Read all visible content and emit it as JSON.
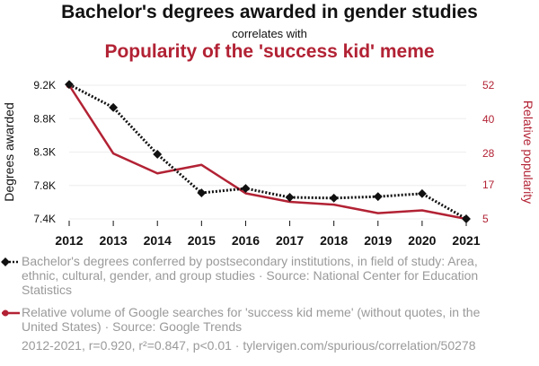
{
  "title": "Bachelor's degrees awarded in gender studies",
  "correlates_text": "correlates with",
  "subtitle": "Popularity of the 'success kid' meme",
  "colors": {
    "series1": "#111111",
    "series2": "#b22234",
    "subtitle": "#b22234",
    "grid": "#eeeeee",
    "muted": "#9a9a9a"
  },
  "legend": [
    {
      "text": "Bachelor's degrees conferred by postsecondary institutions, in field of study: Area, ethnic, cultural, gender, and group studies · Source: National Center for Education Statistics"
    },
    {
      "text": "Relative volume of Google searches for 'success kid meme' (without quotes, in the United States) · Source: Google Trends"
    }
  ],
  "footer": "2012-2021, r=0.920, r²=0.847, p<0.01 · tylervigen.com/spurious/correlation/50278",
  "chart_data": {
    "type": "line",
    "x": [
      2012,
      2013,
      2014,
      2015,
      2016,
      2017,
      2018,
      2019,
      2020,
      2021
    ],
    "x_tick_labels": [
      "2012",
      "2013",
      "2014",
      "2015",
      "2016",
      "2017",
      "2018",
      "2019",
      "2020",
      "2021"
    ],
    "ylabel_left": "Degrees awarded",
    "ylabel_right": "Relative popularity",
    "ylim_left": [
      7400,
      9200
    ],
    "ylim_right": [
      5,
      52
    ],
    "yticks_left": [
      7400,
      7850,
      8300,
      8750,
      9200
    ],
    "yticks_left_labels": [
      "7.4K",
      "7.8K",
      "8.3K",
      "8.8K",
      "9.2K"
    ],
    "yticks_right": [
      5,
      17,
      28,
      40,
      52
    ],
    "yticks_right_labels": [
      "5",
      "17",
      "28",
      "40",
      "52"
    ],
    "grid": true,
    "series": [
      {
        "axis": "left",
        "style": "dotted-diamond",
        "values": [
          9210,
          8900,
          8270,
          7750,
          7810,
          7690,
          7680,
          7700,
          7740,
          7400
        ]
      },
      {
        "axis": "right",
        "style": "solid-circle",
        "values": [
          52,
          28,
          21,
          24,
          14,
          11,
          10,
          7,
          8,
          5
        ]
      }
    ]
  }
}
